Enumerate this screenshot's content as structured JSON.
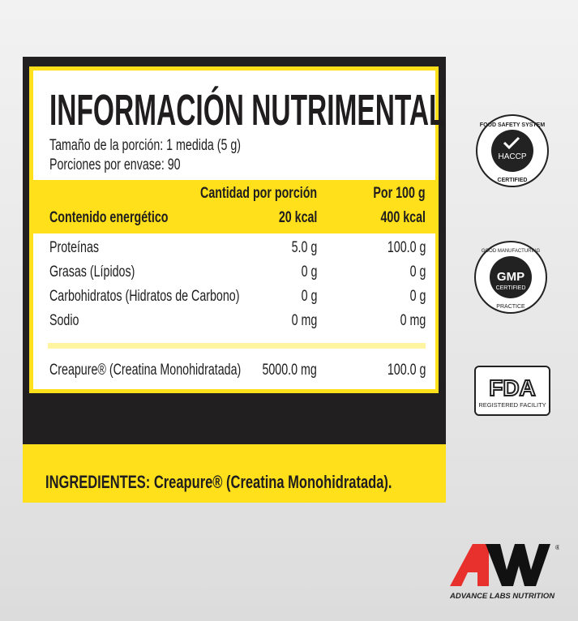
{
  "label": {
    "title": "INFORMACIÓN NUTRIMENTAL",
    "serving_size": "Tamaño de la porción: 1 medida (5 g)",
    "servings": "Porciones por envase: 90",
    "col_per_serving": "Cantidad por porción",
    "col_per_100": "Por 100 g",
    "energy": {
      "label": "Contenido energético",
      "per_serving": "20 kcal",
      "per_100": "400 kcal"
    },
    "rows": [
      {
        "label": "Proteínas",
        "per_serving": "5.0 g",
        "per_100": "100.0 g"
      },
      {
        "label": "Grasas (Lípidos)",
        "per_serving": "0 g",
        "per_100": "0 g"
      },
      {
        "label": "Carbohidratos (Hidratos de Carbono)",
        "per_serving": "0 g",
        "per_100": "0 g"
      },
      {
        "label": "Sodio",
        "per_serving": "0 mg",
        "per_100": "0 mg"
      }
    ],
    "creapure": {
      "label": "Creapure® (Creatina Monohidratada)",
      "per_serving": "5000.0 mg",
      "per_100": "100.0 g"
    },
    "ingredients": "INGREDIENTES: Creapure® (Creatina Monohidratada)."
  },
  "badges": {
    "haccp": {
      "top": "FOOD SAFETY SYSTEM",
      "center": "HACCP",
      "bottom": "CERTIFIED"
    },
    "gmp": {
      "top": "GOOD MANUFACTURING",
      "center": "GMP",
      "sub": "CERTIFIED",
      "bottom": "PRACTICE"
    },
    "fda": {
      "center": "FDA",
      "bottom": "REGISTERED FACILITY"
    }
  },
  "brand": {
    "name": "ADVANCE LABS NUTRITION",
    "colors": {
      "red": "#e8302c",
      "black": "#111111"
    }
  },
  "colors": {
    "yellow": "#ffe01b",
    "dark": "#221f20"
  }
}
